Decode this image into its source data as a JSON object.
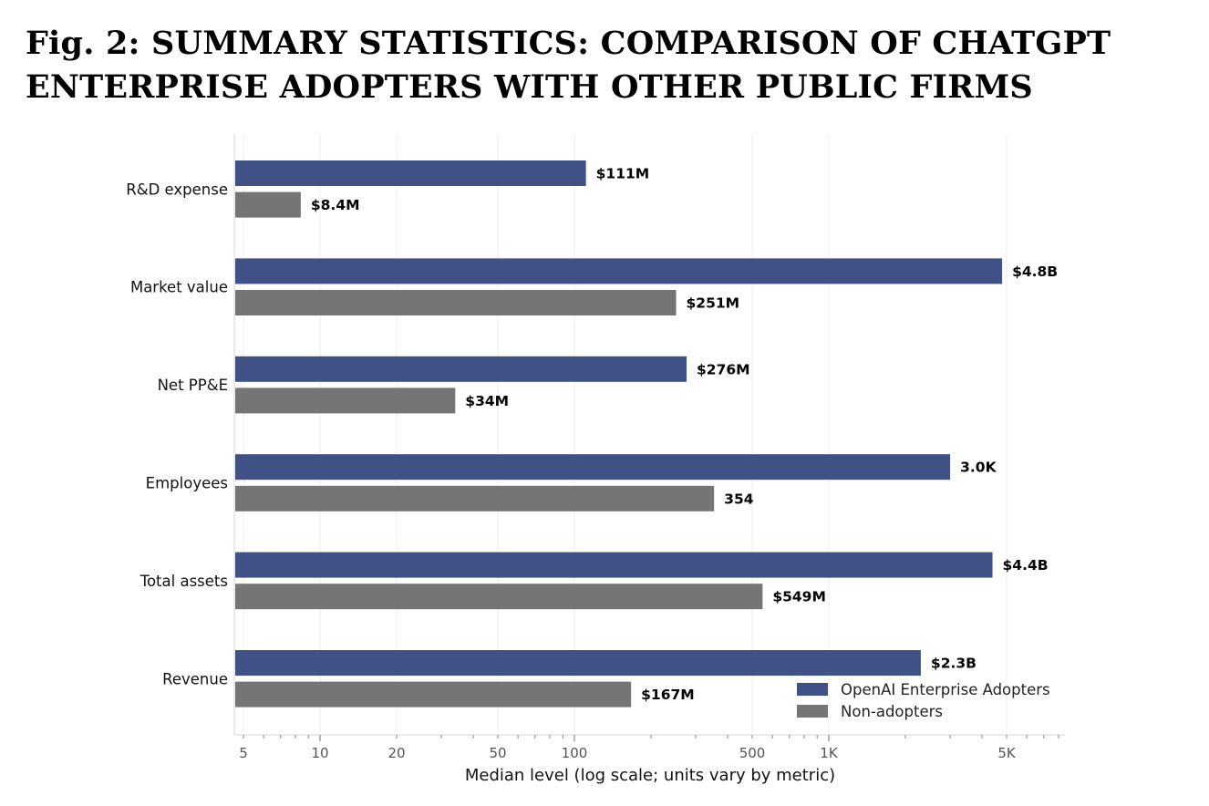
{
  "title": {
    "line1": "Fig. 2: SUMMARY STATISTICS: COMPARISON OF CHATGPT",
    "line2": "ENTERPRISE ADOPTERS WITH OTHER PUBLIC FIRMS"
  },
  "colors": {
    "adopters": "#3f5185",
    "non_adopters": "#757575",
    "grid": "#eeeeee",
    "axis": "#dddddd",
    "tick_text": "#555555"
  },
  "chart_data": {
    "type": "bar",
    "orientation": "horizontal",
    "x_scale": "log",
    "xlabel": "Median level (log scale; units vary by metric)",
    "xlim": [
      4.5,
      8000
    ],
    "x_ticks": [
      {
        "value": 5,
        "label": "5"
      },
      {
        "value": 10,
        "label": "10"
      },
      {
        "value": 20,
        "label": "20"
      },
      {
        "value": 50,
        "label": "50"
      },
      {
        "value": 100,
        "label": "100"
      },
      {
        "value": 500,
        "label": "500"
      },
      {
        "value": 1000,
        "label": "1K"
      },
      {
        "value": 5000,
        "label": "5K"
      }
    ],
    "grid": true,
    "legend_position": "bottom-right",
    "categories": [
      "R&D expense",
      "Market value",
      "Net PP&E",
      "Employees",
      "Total assets",
      "Revenue"
    ],
    "series": [
      {
        "name": "OpenAI Enterprise Adopters",
        "values": [
          111,
          4800,
          276,
          3000,
          4400,
          2300
        ],
        "labels": [
          "$111M",
          "$4.8B",
          "$276M",
          "3.0K",
          "$4.4B",
          "$2.3B"
        ]
      },
      {
        "name": "Non-adopters",
        "values": [
          8.4,
          251,
          34,
          354,
          549,
          167
        ],
        "labels": [
          "$8.4M",
          "$251M",
          "$34M",
          "354",
          "$549M",
          "$167M"
        ]
      }
    ]
  }
}
